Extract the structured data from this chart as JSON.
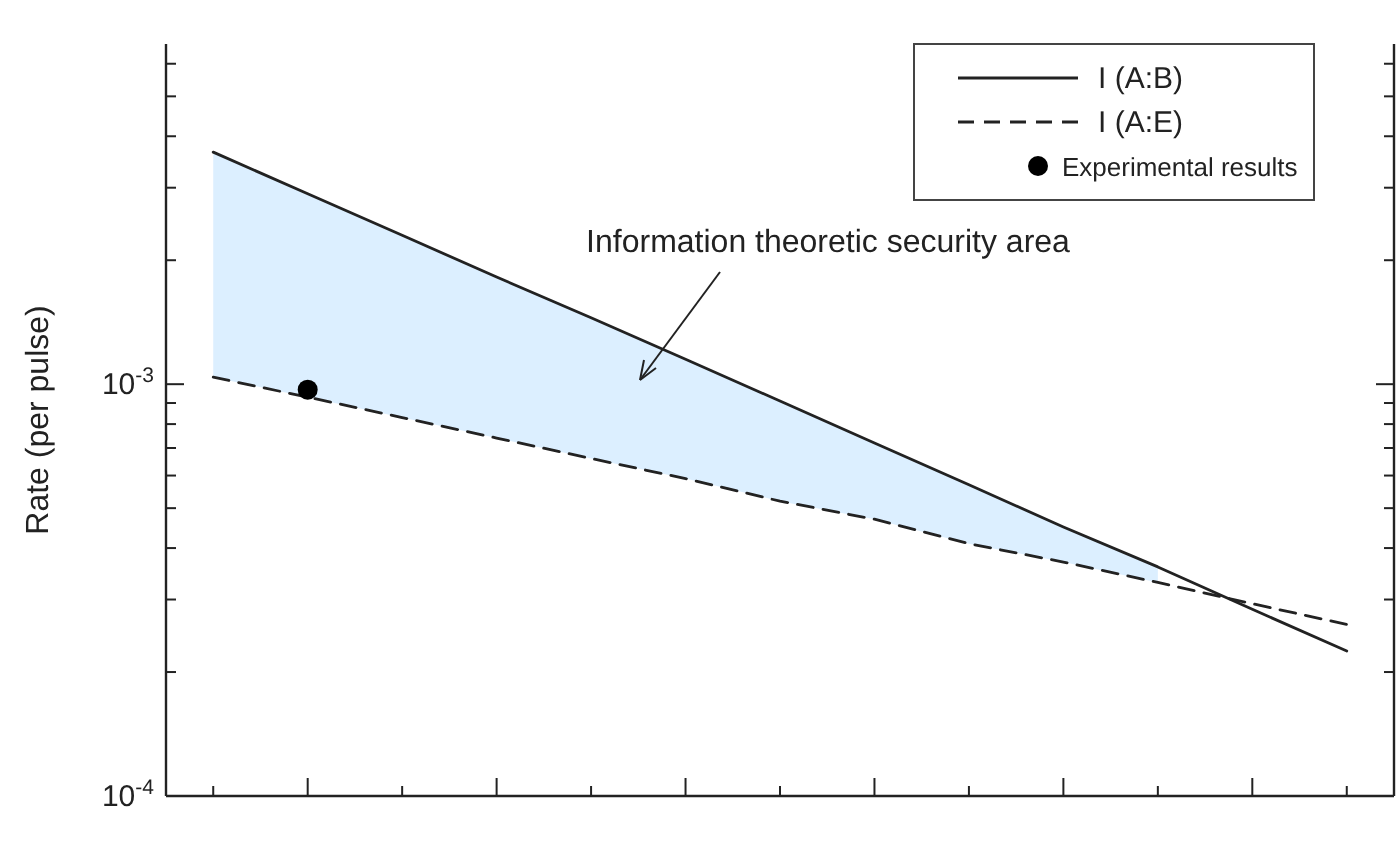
{
  "chart_data": {
    "type": "line",
    "ylabel": "Rate (per pulse)",
    "log": "y",
    "categories": [
      null,
      null,
      null,
      null,
      null,
      null,
      null,
      null,
      null,
      null,
      null,
      null,
      null
    ],
    "ylim": [
      0.0001,
      0.0067
    ],
    "yticks": [
      {
        "value": 0.0001,
        "label": "10$^{-4}$"
      },
      {
        "value": 0.0002,
        "label": null
      },
      {
        "value": 0.0003,
        "label": null
      },
      {
        "value": 0.0004,
        "label": null
      },
      {
        "value": 0.0005,
        "label": null
      },
      {
        "value": 0.0006,
        "label": null
      },
      {
        "value": 0.0007,
        "label": null
      },
      {
        "value": 0.0008,
        "label": null
      },
      {
        "value": 0.0009,
        "label": null
      },
      {
        "value": 0.001,
        "label": "10$^{-3}$"
      },
      {
        "value": 0.002,
        "label": null
      },
      {
        "value": 0.003,
        "label": null
      },
      {
        "value": 0.004,
        "label": null
      },
      {
        "value": 0.005,
        "label": null
      },
      {
        "value": 0.006,
        "label": null
      }
    ],
    "series": [
      {
        "name": "I (A:B)",
        "color": "#222222",
        "line_style": "solid",
        "marker": "none",
        "values": [
          0.00366,
          0.0029,
          0.0023,
          0.00182,
          0.00145,
          0.00115,
          0.00091,
          0.00072,
          0.00057,
          0.00045,
          0.00036,
          0.000284,
          0.000225
        ],
        "lower": [
          0.00104,
          0.00093,
          0.00083,
          0.00074,
          0.00066,
          0.00059,
          0.00052,
          0.00047,
          0.00041,
          0.00037,
          0.00033,
          null,
          null
        ],
        "upper": [
          0.00366,
          0.0029,
          0.0023,
          0.00182,
          0.00145,
          0.00115,
          0.00091,
          0.00072,
          0.00057,
          0.00045,
          0.00036,
          null,
          null
        ]
      },
      {
        "name": "I (A:E)",
        "color": "#222222",
        "line_style": "dashed",
        "marker": "none",
        "values": [
          0.00104,
          0.00093,
          0.00083,
          0.00074,
          0.00066,
          0.00059,
          0.00052,
          0.00047,
          0.00041,
          0.00037,
          0.00033,
          0.000293,
          0.000261
        ]
      },
      {
        "name": "Experimental results",
        "type": "scatter",
        "color": "#000000",
        "marker": "circle",
        "values": [
          null,
          0.00097,
          null,
          null,
          null,
          null,
          null,
          null,
          null,
          null,
          null,
          null,
          null
        ]
      }
    ],
    "legend": "top right",
    "annotations": [
      "Information theoretic security area"
    ]
  }
}
